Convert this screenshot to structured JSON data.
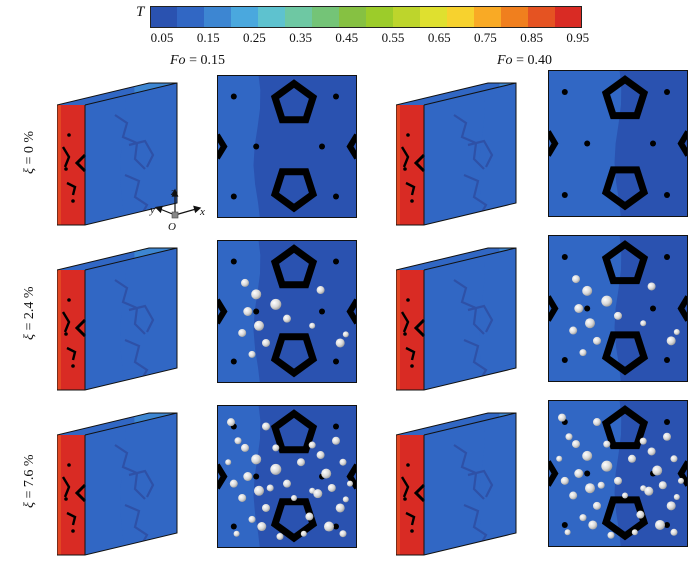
{
  "colorbar": {
    "title": "T",
    "ticks": [
      "0.05",
      "0.15",
      "0.25",
      "0.35",
      "0.45",
      "0.55",
      "0.65",
      "0.75",
      "0.85",
      "0.95"
    ],
    "colors": [
      "#2a52b0",
      "#3167c4",
      "#3d86d2",
      "#4aa8de",
      "#5ec2cf",
      "#6ec8a3",
      "#74c477",
      "#86c142",
      "#9ccc2a",
      "#bdd52c",
      "#dfe02f",
      "#f7d22e",
      "#f9aa25",
      "#f07f1e",
      "#e55322",
      "#d92b24"
    ]
  },
  "columns": [
    {
      "symbol": "Fo",
      "eq": " = 0.15"
    },
    {
      "symbol": "Fo",
      "eq": " = 0.40"
    }
  ],
  "rows": [
    {
      "symbol": "ξ",
      "eq": " = 0 %"
    },
    {
      "symbol": "ξ",
      "eq": " = 2.4 %"
    },
    {
      "symbol": "ξ",
      "eq": " = 7.6 %"
    }
  ],
  "axes": {
    "z": "z",
    "y": "y",
    "x": "x",
    "origin": "O"
  }
}
